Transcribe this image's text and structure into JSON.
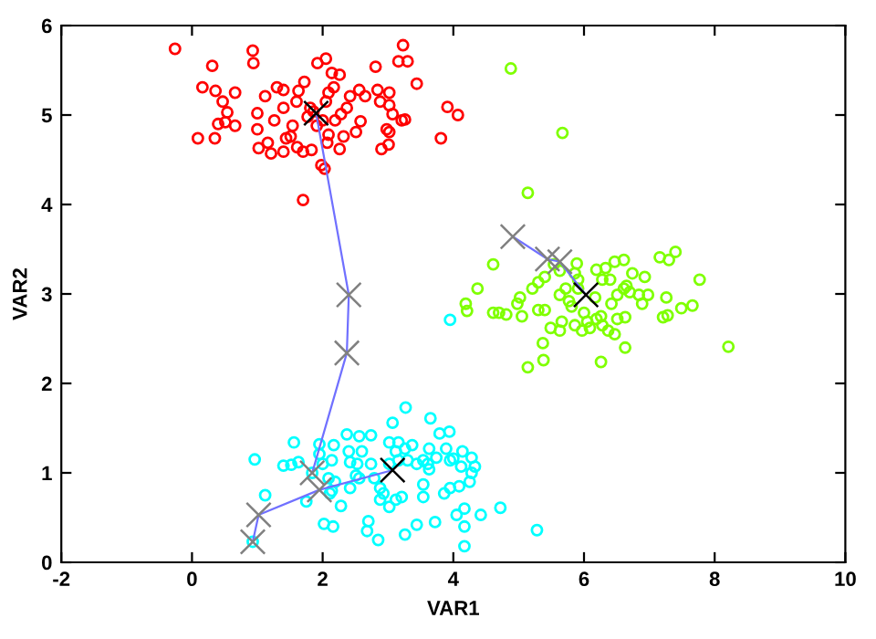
{
  "chart_data": {
    "type": "scatter",
    "xlabel": "VAR1",
    "ylabel": "VAR2",
    "xlim": [
      -2,
      10
    ],
    "ylim": [
      0,
      6
    ],
    "xticks": [
      -2,
      0,
      2,
      4,
      6,
      8,
      10
    ],
    "yticks": [
      0,
      1,
      2,
      3,
      4,
      5,
      6
    ],
    "grid": false,
    "legend": false,
    "series": [
      {
        "marker": "circle",
        "color": "#ff0000",
        "x": [
          -0.26,
          0.93,
          0.31,
          0.94,
          1.92,
          2.05,
          3.23,
          3.16,
          3.3,
          2.81,
          3.44,
          2.14,
          2.26,
          0.16,
          0.36,
          0.66,
          0.47,
          0.54,
          0.4,
          0.51,
          0.66,
          0.09,
          0.35,
          1.0,
          1.0,
          1.12,
          1.3,
          1.4,
          1.6,
          1.72,
          1.63,
          1.4,
          1.26,
          1.54,
          1.51,
          1.16,
          1.02,
          1.21,
          1.4,
          1.61,
          1.7,
          1.83,
          1.91,
          1.86,
          2.09,
          2.17,
          2.05,
          2.0,
          2.19,
          2.28,
          2.37,
          2.42,
          2.09,
          2.32,
          2.26,
          2.07,
          2.51,
          2.58,
          2.56,
          2.65,
          2.84,
          3.02,
          2.88,
          3.02,
          3.07,
          3.21,
          3.26,
          2.98,
          3.02,
          3.01,
          2.9,
          3.91,
          4.07,
          3.81,
          1.98,
          2.03,
          1.7,
          1.44,
          1.77,
          1.81
        ],
        "values": [
          5.74,
          5.72,
          5.55,
          5.58,
          5.58,
          5.63,
          5.78,
          5.6,
          5.6,
          5.54,
          5.35,
          5.47,
          5.45,
          5.31,
          5.27,
          5.25,
          5.15,
          5.03,
          4.9,
          4.92,
          4.88,
          4.74,
          4.74,
          5.02,
          4.84,
          5.21,
          5.31,
          5.28,
          5.15,
          5.37,
          5.27,
          5.08,
          4.94,
          4.88,
          4.76,
          4.69,
          4.63,
          4.57,
          4.59,
          4.64,
          4.59,
          4.61,
          4.88,
          5.04,
          5.25,
          5.31,
          5.15,
          4.94,
          4.94,
          5.01,
          5.08,
          5.21,
          4.78,
          4.76,
          4.62,
          4.69,
          4.81,
          4.93,
          5.28,
          5.21,
          5.28,
          5.25,
          5.15,
          5.11,
          5.01,
          4.94,
          4.95,
          4.84,
          4.81,
          4.67,
          4.62,
          5.09,
          5.0,
          4.74,
          4.44,
          4.4,
          4.05,
          4.74,
          4.98,
          5.08
        ]
      },
      {
        "marker": "circle",
        "color": "#7fff00",
        "x": [
          4.88,
          5.67,
          5.14,
          4.61,
          4.37,
          4.19,
          4.21,
          4.61,
          4.7,
          4.81,
          5.05,
          4.98,
          5.02,
          5.21,
          5.3,
          5.4,
          5.54,
          5.63,
          5.89,
          5.86,
          5.3,
          5.4,
          5.49,
          5.63,
          5.66,
          5.37,
          5.14,
          5.38,
          6.26,
          6.63,
          5.63,
          5.72,
          5.77,
          5.81,
          6.0,
          6.05,
          6.09,
          6.19,
          6.26,
          6.28,
          6.37,
          6.47,
          6.51,
          6.63,
          6.19,
          6.33,
          6.47,
          6.61,
          6.28,
          6.42,
          6.51,
          6.65,
          6.74,
          6.93,
          6.61,
          6.7,
          6.84,
          6.98,
          6.89,
          7.16,
          7.3,
          7.4,
          7.77,
          7.26,
          7.21,
          7.28,
          7.49,
          7.66,
          8.21,
          5.91,
          5.91,
          6.17,
          6.4,
          5.86,
          5.97
        ],
        "values": [
          5.52,
          4.8,
          4.13,
          3.33,
          3.06,
          2.89,
          2.81,
          2.79,
          2.79,
          2.77,
          2.75,
          2.89,
          2.96,
          3.06,
          3.13,
          3.19,
          3.33,
          3.26,
          3.34,
          3.23,
          2.82,
          2.82,
          2.62,
          2.59,
          2.69,
          2.45,
          2.18,
          2.26,
          2.24,
          2.4,
          2.99,
          3.06,
          2.92,
          2.86,
          2.79,
          2.69,
          2.62,
          2.72,
          2.75,
          2.65,
          2.59,
          2.55,
          2.72,
          2.74,
          3.27,
          3.29,
          3.36,
          3.38,
          3.16,
          2.89,
          2.99,
          3.09,
          3.23,
          3.19,
          3.06,
          3.02,
          2.99,
          2.99,
          2.89,
          3.41,
          3.38,
          3.47,
          3.16,
          2.96,
          2.74,
          2.76,
          2.84,
          2.87,
          2.41,
          3.16,
          3.06,
          2.96,
          3.16,
          2.65,
          2.59
        ]
      },
      {
        "marker": "circle",
        "color": "#00ffff",
        "x": [
          0.93,
          1.12,
          0.96,
          1.4,
          1.52,
          1.63,
          1.56,
          1.75,
          1.84,
          1.95,
          1.95,
          2.0,
          2.09,
          2.14,
          2.02,
          2.16,
          2.17,
          2.14,
          2.37,
          2.4,
          2.42,
          2.28,
          2.42,
          2.51,
          2.56,
          2.56,
          2.6,
          2.53,
          2.74,
          2.74,
          2.79,
          2.88,
          2.93,
          2.88,
          2.7,
          2.68,
          2.85,
          3.02,
          3.07,
          3.12,
          3.02,
          3.16,
          3.02,
          3.12,
          3.21,
          3.27,
          3.16,
          3.26,
          3.37,
          3.3,
          3.44,
          3.54,
          3.61,
          3.54,
          3.54,
          3.63,
          3.65,
          3.79,
          3.94,
          3.63,
          3.74,
          3.89,
          3.95,
          4.0,
          3.26,
          3.44,
          3.72,
          3.86,
          3.95,
          4.09,
          4.25,
          4.14,
          4.28,
          4.33,
          4.28,
          4.12,
          4.05,
          4.17,
          4.17,
          4.42,
          4.72,
          5.28,
          4.17,
          2.11,
          2.19,
          3.95
        ],
        "values": [
          0.23,
          0.75,
          1.15,
          1.08,
          1.09,
          1.12,
          1.34,
          0.68,
          1.0,
          1.32,
          1.21,
          1.1,
          0.94,
          0.8,
          0.43,
          0.4,
          1.31,
          1.14,
          1.43,
          1.24,
          1.12,
          0.63,
          0.83,
          0.97,
          0.94,
          1.41,
          1.24,
          1.1,
          1.42,
          1.1,
          0.94,
          0.83,
          0.77,
          0.7,
          0.46,
          0.35,
          0.25,
          1.34,
          1.56,
          1.24,
          1.1,
          1.14,
          0.62,
          0.7,
          0.73,
          1.73,
          1.34,
          1.27,
          1.31,
          1.14,
          1.1,
          1.14,
          1.1,
          0.87,
          0.73,
          1.04,
          1.61,
          1.44,
          1.46,
          1.27,
          1.17,
          1.27,
          1.14,
          1.16,
          0.31,
          0.42,
          0.45,
          0.77,
          0.83,
          0.85,
          0.9,
          1.24,
          1.17,
          1.07,
          1.0,
          1.07,
          0.53,
          0.6,
          0.4,
          0.53,
          0.61,
          0.36,
          0.18,
          0.77,
          0.9,
          2.71
        ]
      },
      {
        "type": "line",
        "marker": "none",
        "color": "#7070ff",
        "x": [
          1.84,
          2.37,
          2.4,
          1.9
        ],
        "values": [
          1.0,
          2.34,
          2.99,
          5.02
        ]
      },
      {
        "type": "line",
        "marker": "none",
        "color": "#7070ff",
        "x": [
          4.91,
          5.44,
          5.63,
          6.03
        ],
        "values": [
          3.64,
          3.39,
          3.36,
          2.99
        ]
      },
      {
        "type": "line",
        "marker": "none",
        "color": "#7070ff",
        "x": [
          0.93,
          1.02,
          1.95,
          3.07
        ],
        "values": [
          0.23,
          0.53,
          0.81,
          1.03
        ]
      },
      {
        "marker": "cross",
        "color": "#808080",
        "x": [
          1.84,
          2.37,
          2.4,
          4.91,
          5.44,
          5.63,
          0.93,
          1.02,
          1.95
        ],
        "values": [
          1.0,
          2.34,
          2.99,
          3.64,
          3.39,
          3.36,
          0.23,
          0.53,
          0.81
        ]
      },
      {
        "marker": "cross",
        "color": "#000000",
        "x": [
          1.9,
          6.03,
          3.07
        ],
        "values": [
          5.02,
          2.99,
          1.03
        ]
      }
    ]
  }
}
